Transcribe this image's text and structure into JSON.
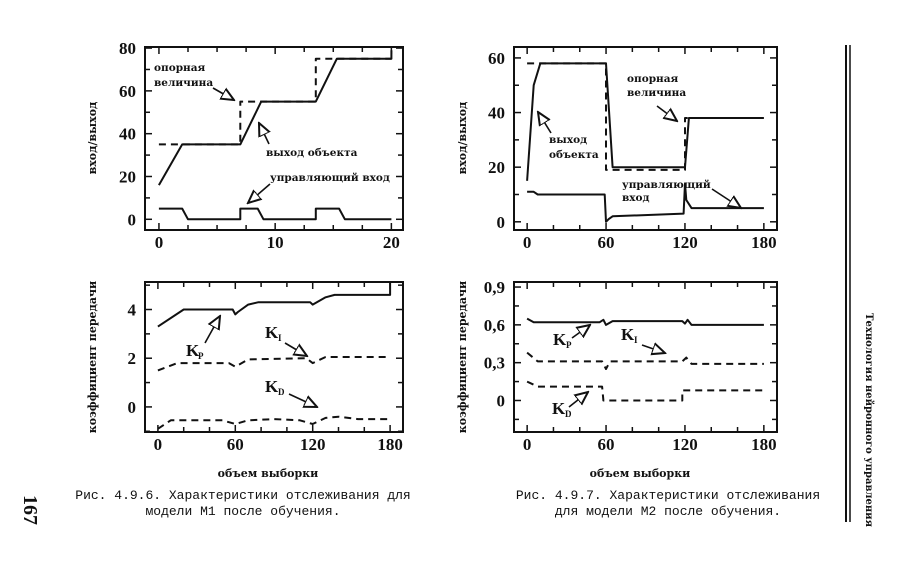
{
  "page_number": "167",
  "running_head": "Технология нейронного управления",
  "figures": [
    {
      "caption_line1": "Рис. 4.9.6. Характеристики отслеживания для",
      "caption_line2": "модели M1 после обучения."
    },
    {
      "caption_line1": "Рис. 4.9.7. Характеристики отслеживания",
      "caption_line2": "для модели M2 после обучения."
    }
  ],
  "annotations": {
    "reference_1": "опорная",
    "reference_2": "величина",
    "output": "выход объекта",
    "output_1": "выход",
    "output_2": "объекта",
    "control": "управляющий вход",
    "control_1": "управляющий",
    "control_2": "вход",
    "k_main": "K",
    "kp_sub": "P",
    "ki_sub": "I",
    "kd_sub": "D"
  },
  "colors": {
    "ink": "#111111",
    "paper": "#ffffff"
  },
  "chart_data": [
    {
      "type": "line",
      "title": "",
      "xlabel": "",
      "ylabel": "вход/выход",
      "xlim": [
        -1.2,
        21
      ],
      "ylim": [
        -5,
        80.5
      ],
      "xticks": [
        "0",
        "10",
        "20"
      ],
      "xtick_values": [
        0,
        10,
        20
      ],
      "xminor": 2.5,
      "yticks": [
        "0",
        "20",
        "40",
        "60",
        "80"
      ],
      "ytick_values": [
        0,
        20,
        40,
        60,
        80
      ],
      "yminor": 10,
      "grid": false,
      "series": [
        {
          "name": "опорная величина",
          "style": "dashed",
          "points": [
            [
              0,
              35
            ],
            [
              2,
              35
            ],
            [
              7,
              35
            ],
            [
              7,
              55
            ],
            [
              13.5,
              55
            ],
            [
              13.5,
              75
            ],
            [
              20,
              75
            ]
          ]
        },
        {
          "name": "выход объекта",
          "style": "solid",
          "points": [
            [
              0,
              16
            ],
            [
              2,
              35
            ],
            [
              7,
              35
            ],
            [
              8.8,
              55
            ],
            [
              13.5,
              55
            ],
            [
              15.3,
              75
            ],
            [
              20,
              75
            ],
            [
              20,
              79
            ]
          ]
        },
        {
          "name": "управляющий вход",
          "style": "solid",
          "points": [
            [
              0,
              5
            ],
            [
              2,
              5
            ],
            [
              2.5,
              0
            ],
            [
              7,
              0
            ],
            [
              7,
              5
            ],
            [
              8.5,
              5
            ],
            [
              9,
              0
            ],
            [
              13.5,
              0
            ],
            [
              13.5,
              5
            ],
            [
              15.5,
              5
            ],
            [
              16,
              0
            ],
            [
              20,
              0
            ]
          ]
        }
      ]
    },
    {
      "type": "line",
      "title": "",
      "xlabel": "",
      "ylabel": "вход/выход",
      "xlim": [
        -10,
        190
      ],
      "ylim": [
        -3,
        64
      ],
      "xticks": [
        "0",
        "60",
        "120",
        "180"
      ],
      "xtick_values": [
        0,
        60,
        120,
        180
      ],
      "xminor": 20,
      "yticks": [
        "0",
        "20",
        "40",
        "60"
      ],
      "ytick_values": [
        0,
        20,
        40,
        60
      ],
      "yminor": 10,
      "grid": false,
      "series": [
        {
          "name": "опорная величина",
          "style": "dashed",
          "points": [
            [
              0,
              58
            ],
            [
              60,
              58
            ],
            [
              60,
              19
            ],
            [
              120,
              19
            ],
            [
              120,
              38
            ],
            [
              180,
              38
            ]
          ]
        },
        {
          "name": "выход объекта",
          "style": "solid",
          "points": [
            [
              0,
              15
            ],
            [
              5,
              50
            ],
            [
              10,
              58
            ],
            [
              60,
              58
            ],
            [
              65,
              20
            ],
            [
              120,
              20
            ],
            [
              123,
              38
            ],
            [
              180,
              38
            ]
          ]
        },
        {
          "name": "управляющий вход",
          "style": "solid",
          "points": [
            [
              0,
              11
            ],
            [
              5,
              11
            ],
            [
              8,
              10
            ],
            [
              59,
              10
            ],
            [
              60,
              0
            ],
            [
              62,
              1
            ],
            [
              65,
              2
            ],
            [
              119,
              3
            ],
            [
              120,
              14
            ],
            [
              121,
              8
            ],
            [
              125,
              5
            ],
            [
              180,
              5
            ]
          ]
        }
      ]
    },
    {
      "type": "line",
      "title": "",
      "xlabel": "объем выборки",
      "ylabel": "коэффициент передачи",
      "xlim": [
        -10,
        190
      ],
      "ylim": [
        -1.03,
        5.13
      ],
      "xticks": [
        "0",
        "60",
        "120",
        "180"
      ],
      "xtick_values": [
        0,
        60,
        120,
        180
      ],
      "xminor": 20,
      "yticks": [
        "0",
        "2",
        "4"
      ],
      "ytick_values": [
        0,
        2,
        4
      ],
      "yminor": 1,
      "grid": false,
      "series": [
        {
          "name": "KP",
          "style": "solid",
          "points": [
            [
              0,
              3.3
            ],
            [
              20,
              4
            ],
            [
              58,
              4
            ],
            [
              60,
              3.8
            ],
            [
              62,
              3.9
            ],
            [
              70,
              4.2
            ],
            [
              78,
              4.3
            ],
            [
              118,
              4.3
            ],
            [
              120,
              4.2
            ],
            [
              130,
              4.5
            ],
            [
              137,
              4.6
            ],
            [
              180,
              4.6
            ],
            [
              180,
              5.1
            ]
          ]
        },
        {
          "name": "KI",
          "style": "dashed",
          "points": [
            [
              0,
              1.5
            ],
            [
              15,
              1.8
            ],
            [
              55,
              1.8
            ],
            [
              60,
              1.65
            ],
            [
              70,
              1.95
            ],
            [
              115,
              2.0
            ],
            [
              120,
              1.8
            ],
            [
              130,
              2.05
            ],
            [
              180,
              2.05
            ]
          ]
        },
        {
          "name": "KD",
          "style": "dashed",
          "points": [
            [
              0,
              -0.9
            ],
            [
              10,
              -0.55
            ],
            [
              50,
              -0.55
            ],
            [
              60,
              -0.7
            ],
            [
              70,
              -0.55
            ],
            [
              90,
              -0.5
            ],
            [
              110,
              -0.55
            ],
            [
              120,
              -0.7
            ],
            [
              130,
              -0.45
            ],
            [
              140,
              -0.4
            ],
            [
              155,
              -0.5
            ],
            [
              180,
              -0.5
            ]
          ]
        }
      ]
    },
    {
      "type": "line",
      "title": "",
      "xlabel": "объем выборки",
      "ylabel": "коэффициент передачи",
      "xlim": [
        -10,
        190
      ],
      "ylim": [
        -0.25,
        0.94
      ],
      "xticks": [
        "0",
        "60",
        "120",
        "180"
      ],
      "xtick_values": [
        0,
        60,
        120,
        180
      ],
      "xminor": 20,
      "yticks": [
        "0",
        "0,3",
        "0,6",
        "0,9"
      ],
      "ytick_values": [
        0,
        0.3,
        0.6,
        0.9
      ],
      "yminor": 0.15,
      "grid": false,
      "series": [
        {
          "name": "KP",
          "style": "solid",
          "points": [
            [
              0,
              0.65
            ],
            [
              5,
              0.62
            ],
            [
              55,
              0.62
            ],
            [
              58,
              0.64
            ],
            [
              60,
              0.6
            ],
            [
              65,
              0.63
            ],
            [
              118,
              0.63
            ],
            [
              120,
              0.61
            ],
            [
              122,
              0.64
            ],
            [
              125,
              0.6
            ],
            [
              180,
              0.6
            ]
          ]
        },
        {
          "name": "KI",
          "style": "dashed",
          "points": [
            [
              0,
              0.38
            ],
            [
              8,
              0.31
            ],
            [
              57,
              0.31
            ],
            [
              60,
              0.25
            ],
            [
              63,
              0.31
            ],
            [
              118,
              0.31
            ],
            [
              121,
              0.34
            ],
            [
              125,
              0.29
            ],
            [
              180,
              0.29
            ]
          ]
        },
        {
          "name": "KD",
          "style": "dashed",
          "points": [
            [
              0,
              0.15
            ],
            [
              8,
              0.11
            ],
            [
              57,
              0.11
            ],
            [
              58,
              0.0
            ],
            [
              118,
              0.0
            ],
            [
              118,
              0.08
            ],
            [
              180,
              0.08
            ]
          ]
        }
      ]
    }
  ]
}
